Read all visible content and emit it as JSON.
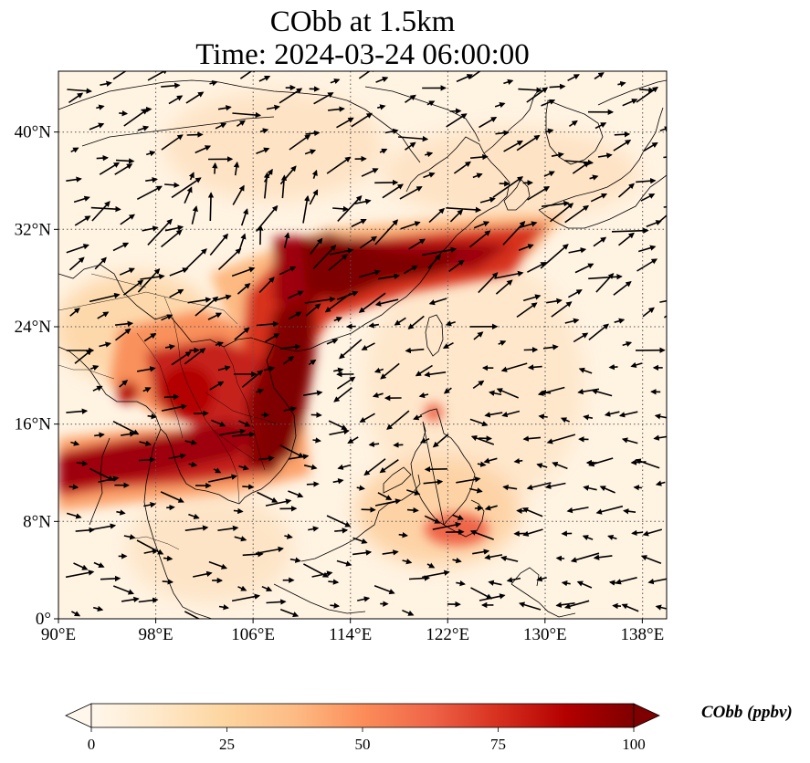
{
  "title": {
    "line1": "CObb at 1.5km",
    "line2": "Time: 2024-03-24 06:00:00"
  },
  "map": {
    "extent": {
      "lon_min": 90,
      "lon_max": 140,
      "lat_min": 0,
      "lat_max": 45
    },
    "lon_ticks": [
      {
        "value": 90,
        "label": "90°E"
      },
      {
        "value": 98,
        "label": "98°E"
      },
      {
        "value": 106,
        "label": "106°E"
      },
      {
        "value": 114,
        "label": "114°E"
      },
      {
        "value": 122,
        "label": "122°E"
      },
      {
        "value": 130,
        "label": "130°E"
      },
      {
        "value": 138,
        "label": "138°E"
      }
    ],
    "lat_ticks": [
      {
        "value": 0,
        "label": "0°"
      },
      {
        "value": 8,
        "label": "8°N"
      },
      {
        "value": 16,
        "label": "16°N"
      },
      {
        "value": 24,
        "label": "24°N"
      },
      {
        "value": 32,
        "label": "32°N"
      },
      {
        "value": 40,
        "label": "40°N"
      }
    ],
    "gridlines": "dotted",
    "field_variable": "CObb",
    "vectors": "wind"
  },
  "colorbar": {
    "title": "CObb (ppbv)",
    "min": 0,
    "max": 100,
    "extend": "both",
    "colormap": "OrRd",
    "ticks": [
      {
        "value": 0,
        "label": "0"
      },
      {
        "value": 25,
        "label": "25"
      },
      {
        "value": 50,
        "label": "50"
      },
      {
        "value": 75,
        "label": "75"
      },
      {
        "value": 100,
        "label": "100"
      }
    ],
    "colors": [
      "#fff7ec",
      "#fee8c8",
      "#fdd49e",
      "#fdbb84",
      "#fc8d59",
      "#ef6548",
      "#d7301f",
      "#b30000",
      "#7f0000"
    ]
  }
}
